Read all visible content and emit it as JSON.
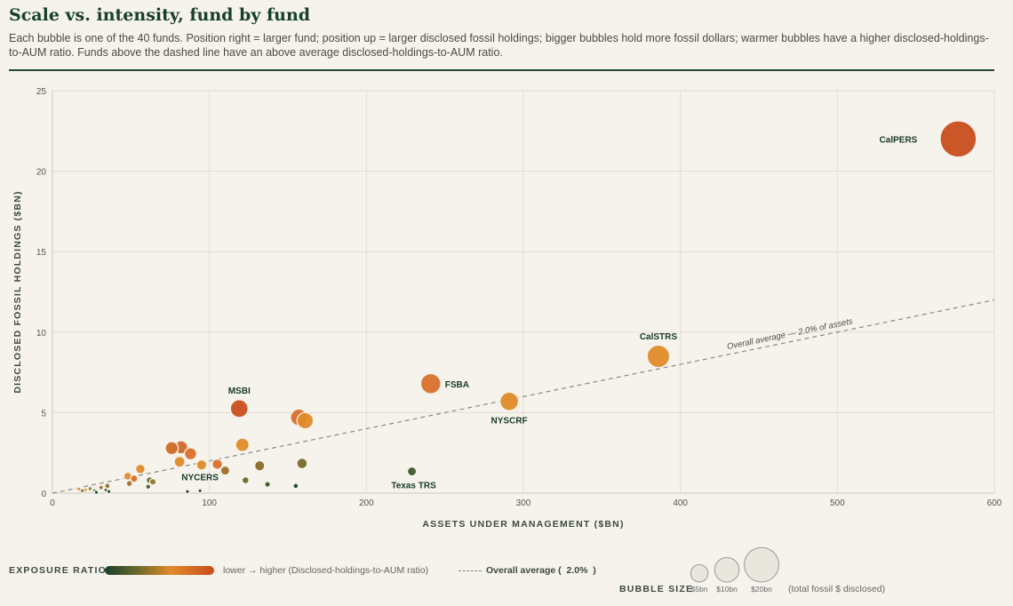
{
  "title": "Scale vs. intensity, fund by fund",
  "subtitle": "Each bubble is one of the 40 funds. Position right = larger fund; position up = larger disclosed fossil holdings; bigger bubbles hold more fossil dollars; warmer bubbles have a higher disclosed-holdings-to-AUM ratio. Funds above the dashed line have an above average disclosed-holdings-to-AUM ratio.",
  "legend": {
    "exposure_title": "EXPOSURE RATIO",
    "exposure_desc": "lower → higher (Disclosed-holdings-to-AUM ratio)",
    "avg_prefix": "Overall average (",
    "avg_value": "2.0%",
    "avg_suffix": ")",
    "size_title": "BUBBLE SIZE",
    "size_note": "(total fossil $ disclosed)",
    "size_items": [
      {
        "label": "$5bn",
        "value": 5
      },
      {
        "label": "$10bn",
        "value": 10
      },
      {
        "label": "$20bn",
        "value": 20
      }
    ]
  },
  "colors": {
    "low": "#17402a",
    "mid_low": "#6b6a2a",
    "mid": "#e08a2a",
    "high": "#c84d1e",
    "grid": "#e2ded4",
    "average_line": "#8a8a84"
  },
  "chart_data": {
    "type": "scatter",
    "xlabel": "ASSETS UNDER MANAGEMENT ($BN)",
    "ylabel": "DISCLOSED FOSSIL HOLDINGS ($BN)",
    "xlim": [
      0,
      600
    ],
    "ylim": [
      0,
      25
    ],
    "xticks": [
      0,
      100,
      200,
      300,
      400,
      500,
      600
    ],
    "yticks": [
      0,
      5,
      10,
      15,
      20,
      25
    ],
    "grid": true,
    "average_ratio": 0.02,
    "average_label": "Overall average — 2.0% of assets",
    "points": [
      {
        "x": 577,
        "y": 22.0,
        "label": "CalPERS",
        "color": "#c84d1e"
      },
      {
        "x": 386,
        "y": 8.5,
        "label": "CalSTRS",
        "color": "#e08a2a"
      },
      {
        "x": 241,
        "y": 6.8,
        "label": "FSBA",
        "color": "#d9702a"
      },
      {
        "x": 291,
        "y": 5.7,
        "label": "NYSCRF",
        "color": "#e08a2a"
      },
      {
        "x": 119,
        "y": 5.25,
        "label": "MSBI",
        "color": "#c84d1e"
      },
      {
        "x": 229,
        "y": 1.35,
        "label": "Texas TRS",
        "color": "#3a5a2a"
      },
      {
        "x": 94,
        "y": 0.15,
        "label": "NYCERS",
        "color": "#17402a"
      },
      {
        "x": 157,
        "y": 4.7,
        "label": "",
        "color": "#d9702a"
      },
      {
        "x": 161,
        "y": 4.5,
        "label": "",
        "color": "#e08a2a"
      },
      {
        "x": 76,
        "y": 2.8,
        "label": "",
        "color": "#d06a28"
      },
      {
        "x": 82,
        "y": 2.85,
        "label": "",
        "color": "#d06a28"
      },
      {
        "x": 121,
        "y": 3.0,
        "label": "",
        "color": "#e08a2a"
      },
      {
        "x": 88,
        "y": 2.45,
        "label": "",
        "color": "#d9702a"
      },
      {
        "x": 81,
        "y": 1.95,
        "label": "",
        "color": "#e08a2a"
      },
      {
        "x": 95,
        "y": 1.75,
        "label": "",
        "color": "#e08a2a"
      },
      {
        "x": 105,
        "y": 1.8,
        "label": "",
        "color": "#d9702a"
      },
      {
        "x": 110,
        "y": 1.4,
        "label": "",
        "color": "#a0702a"
      },
      {
        "x": 132,
        "y": 1.7,
        "label": "",
        "color": "#8a6a2a"
      },
      {
        "x": 159,
        "y": 1.85,
        "label": "",
        "color": "#7a6a2a"
      },
      {
        "x": 56,
        "y": 1.5,
        "label": "",
        "color": "#e08a2a"
      },
      {
        "x": 48,
        "y": 1.05,
        "label": "",
        "color": "#e08a2a"
      },
      {
        "x": 49,
        "y": 0.6,
        "label": "",
        "color": "#a0702a"
      },
      {
        "x": 62,
        "y": 0.8,
        "label": "",
        "color": "#6b6a2a"
      },
      {
        "x": 64,
        "y": 0.7,
        "label": "",
        "color": "#8a7a2a"
      },
      {
        "x": 61,
        "y": 0.4,
        "label": "",
        "color": "#3a5a2a"
      },
      {
        "x": 31,
        "y": 0.35,
        "label": "",
        "color": "#a0702a"
      },
      {
        "x": 35,
        "y": 0.45,
        "label": "",
        "color": "#8a6a2a"
      },
      {
        "x": 17,
        "y": 0.25,
        "label": "",
        "color": "#e08a2a"
      },
      {
        "x": 21,
        "y": 0.2,
        "label": "",
        "color": "#e08a2a"
      },
      {
        "x": 24,
        "y": 0.28,
        "label": "",
        "color": "#8a7a2a"
      },
      {
        "x": 27,
        "y": 0.15,
        "label": "",
        "color": "#3a5a2a"
      },
      {
        "x": 28,
        "y": 0.05,
        "label": "",
        "color": "#17402a"
      },
      {
        "x": 36,
        "y": 0.1,
        "label": "",
        "color": "#17402a"
      },
      {
        "x": 86,
        "y": 0.1,
        "label": "",
        "color": "#17402a"
      },
      {
        "x": 123,
        "y": 0.8,
        "label": "",
        "color": "#6b6a2a"
      },
      {
        "x": 137,
        "y": 0.55,
        "label": "",
        "color": "#3a5a2a"
      },
      {
        "x": 155,
        "y": 0.45,
        "label": "",
        "color": "#17402a"
      },
      {
        "x": 34,
        "y": 0.2,
        "label": "",
        "color": "#3a5a2a"
      },
      {
        "x": 19,
        "y": 0.15,
        "label": "",
        "color": "#6b6a2a"
      },
      {
        "x": 52,
        "y": 0.9,
        "label": "",
        "color": "#d9702a"
      }
    ]
  }
}
